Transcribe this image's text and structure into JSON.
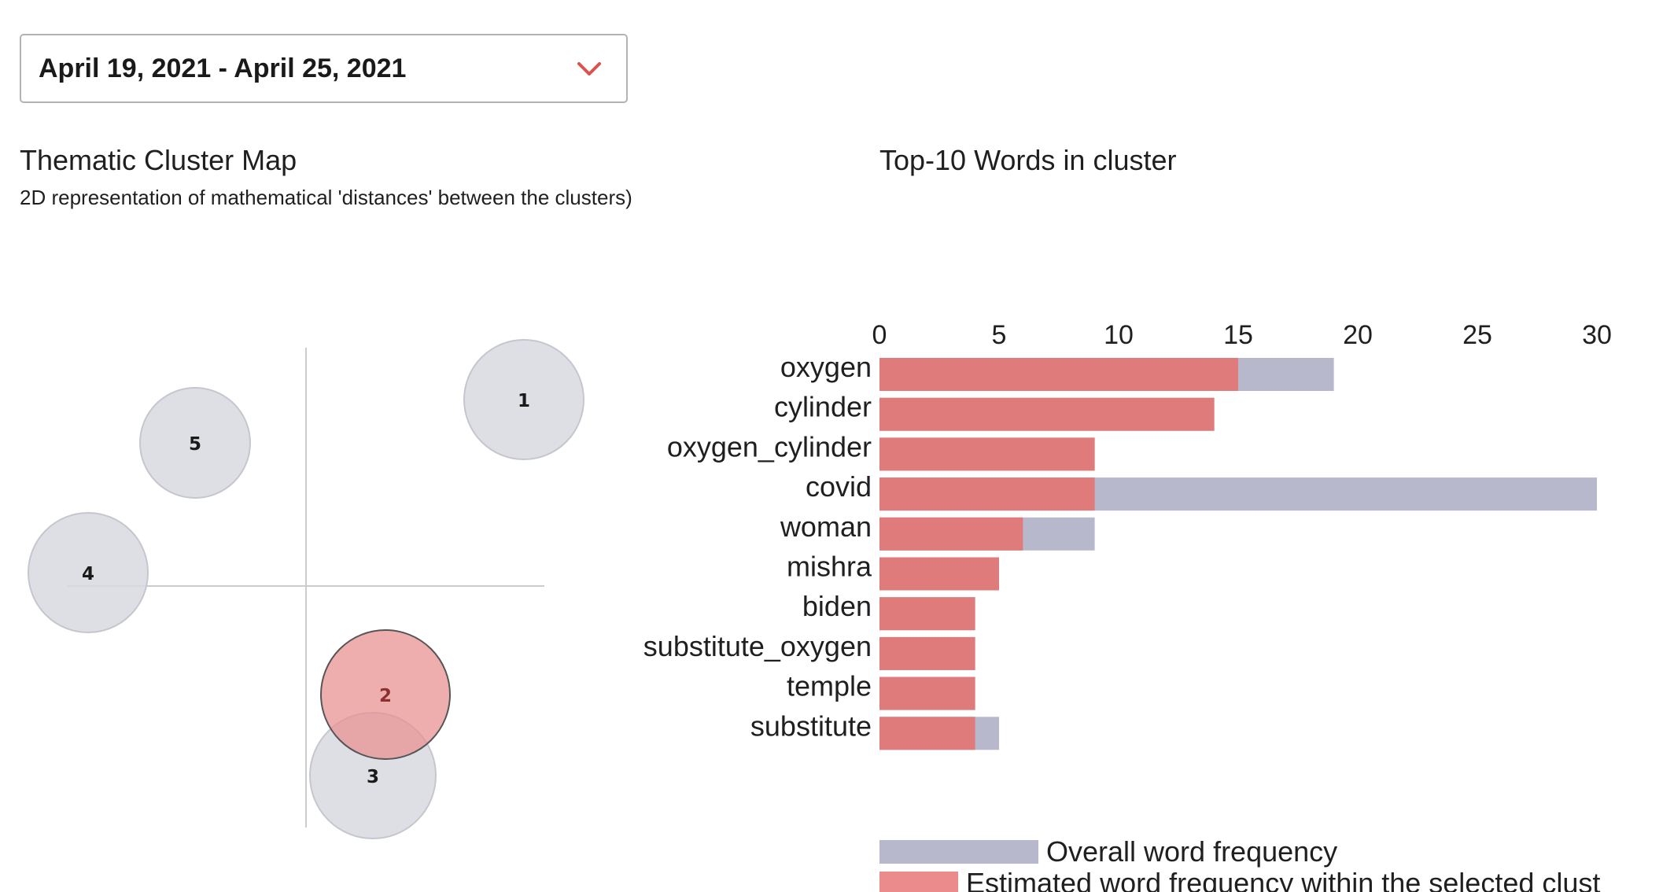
{
  "date_range": {
    "selected": "April 19, 2021 - April 25, 2021"
  },
  "cluster_map": {
    "title": "Thematic Cluster Map",
    "subtitle": "2D representation of mathematical 'distances' between the clusters)",
    "selected_cluster": "2",
    "colors": {
      "default_fill": "#d8d8e0",
      "selected_fill": "#eda3a3",
      "selected_stroke": "#555555",
      "axis": "#cccccc"
    }
  },
  "words_chart": {
    "title": "Top-10 Words in cluster"
  },
  "chart_data": {
    "type": "bar",
    "orientation": "horizontal",
    "categories": [
      "oxygen",
      "cylinder",
      "oxygen_cylinder",
      "covid",
      "woman",
      "mishra",
      "biden",
      "substitute_oxygen",
      "temple",
      "substitute"
    ],
    "series": [
      {
        "name": "Overall word frequency",
        "color": "#b8b8cc",
        "values": [
          19,
          14,
          9,
          30,
          9,
          5,
          4,
          4,
          4,
          5
        ]
      },
      {
        "name": "Estimated word frequency within the selected clust",
        "color": "#e07b7b",
        "values": [
          15,
          14,
          9,
          9,
          6,
          5,
          4,
          4,
          4,
          4
        ]
      }
    ],
    "xticks": [
      "0",
      "5",
      "10",
      "15",
      "20",
      "25",
      "30"
    ],
    "xlim": [
      0,
      30
    ],
    "legend_position": "bottom",
    "overlay": true
  }
}
